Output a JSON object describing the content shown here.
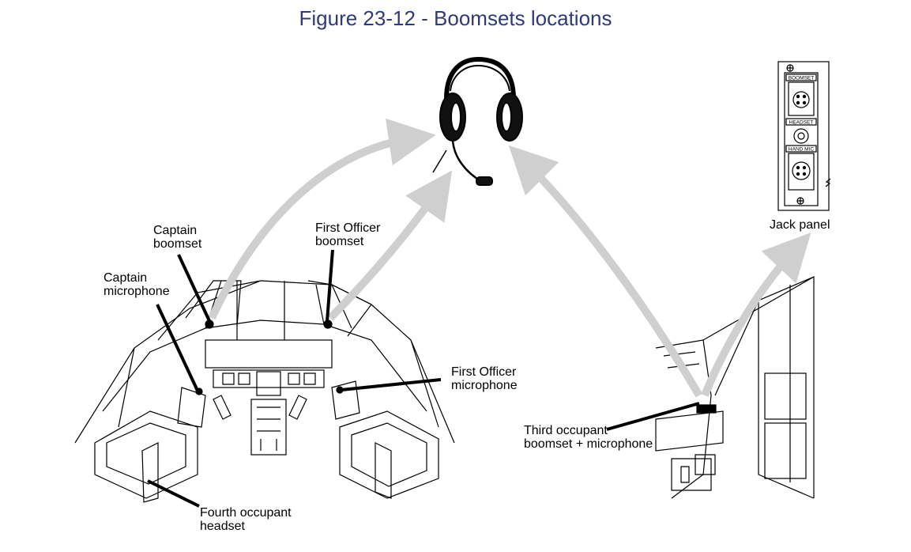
{
  "figure": {
    "title": "Figure 23-12 - Boomsets locations"
  },
  "labels": {
    "captain_boomset": [
      "Captain",
      "boomset"
    ],
    "first_officer_boomset": [
      "First Officer",
      "boomset"
    ],
    "captain_microphone": [
      "Captain",
      "microphone"
    ],
    "first_officer_microphone": [
      "First Officer",
      "microphone"
    ],
    "third_occupant": [
      "Third occupant",
      "boomset + microphone"
    ],
    "fourth_occupant": [
      "Fourth occupant",
      "headset"
    ],
    "jack_panel": "Jack panel"
  },
  "jack_panel": {
    "sections": [
      "BOOMSET",
      "HEADSET",
      "HAND MIC"
    ]
  },
  "colors": {
    "title": "#2f3a78",
    "arrow": "#cfcfcf",
    "line": "#000000"
  }
}
